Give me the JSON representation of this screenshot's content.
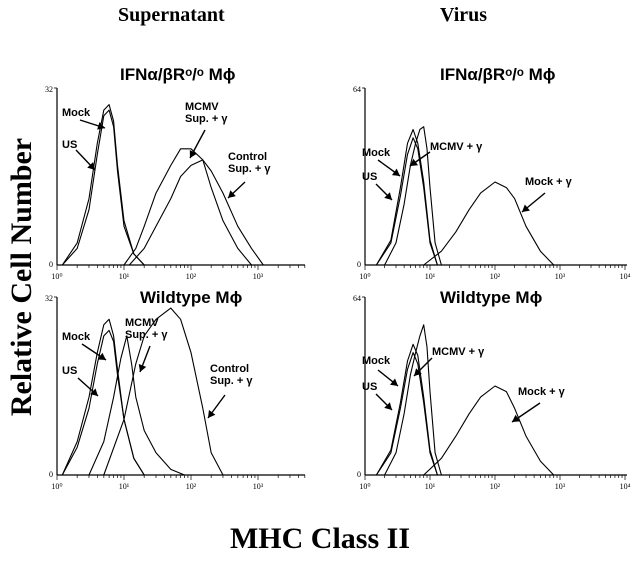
{
  "figure": {
    "col_left_title": "Supernatant",
    "col_right_title": "Virus",
    "ylabel": "Relative Cell Number",
    "xlabel": "MHC Class II"
  },
  "chart_data": [
    {
      "type": "line",
      "title": "IFNα/βRᵒ/ᵒ Mϕ",
      "x_scale": "log",
      "xlim": [
        1,
        10000
      ],
      "ylim": [
        0,
        32
      ],
      "x_ticks": [
        "10⁰",
        "10¹",
        "10²",
        "10³"
      ],
      "y_ticks": [
        "0",
        "32"
      ],
      "annotations": [
        "Mock",
        "US",
        "MCMV Sup. + γ",
        "Control Sup. + γ"
      ],
      "series": [
        {
          "name": "US",
          "x": [
            1.2,
            2,
            3,
            4,
            5,
            6,
            7,
            8,
            10,
            14,
            20
          ],
          "y": [
            0,
            3,
            10,
            20,
            27,
            28,
            25,
            17,
            7,
            2,
            0
          ]
        },
        {
          "name": "Mock",
          "x": [
            1.2,
            2,
            3,
            4,
            5,
            6,
            7,
            8,
            10,
            14,
            20
          ],
          "y": [
            0,
            4,
            12,
            22,
            28,
            29,
            26,
            18,
            8,
            2,
            0
          ]
        },
        {
          "name": "MCMV Sup. + γ",
          "x": [
            10,
            15,
            20,
            30,
            50,
            70,
            100,
            150,
            200,
            300,
            500,
            800
          ],
          "y": [
            0,
            3,
            7,
            13,
            18,
            21,
            21,
            19,
            14,
            8,
            3,
            0
          ]
        },
        {
          "name": "Control Sup. + γ",
          "x": [
            12,
            20,
            30,
            50,
            70,
            100,
            150,
            200,
            300,
            500,
            800,
            1200
          ],
          "y": [
            0,
            3,
            7,
            12,
            16,
            18,
            19,
            17,
            13,
            7,
            3,
            0
          ]
        }
      ]
    },
    {
      "type": "line",
      "title": "IFNα/βRᵒ/ᵒ Mϕ",
      "x_scale": "log",
      "xlim": [
        1,
        10000
      ],
      "ylim": [
        0,
        64
      ],
      "x_ticks": [
        "10⁰",
        "10¹",
        "10²",
        "10³",
        "10⁴"
      ],
      "y_ticks": [
        "0",
        "64"
      ],
      "annotations": [
        "Mock",
        "US",
        "MCMV + γ",
        "Mock + γ"
      ],
      "series": [
        {
          "name": "US",
          "x": [
            1.5,
            2.5,
            3.5,
            4.5,
            5.5,
            6.5,
            8,
            10,
            13
          ],
          "y": [
            0,
            8,
            25,
            40,
            46,
            42,
            28,
            8,
            0
          ]
        },
        {
          "name": "Mock",
          "x": [
            1.5,
            2.5,
            3.5,
            4.5,
            5.5,
            6.5,
            8,
            10,
            13
          ],
          "y": [
            0,
            9,
            28,
            44,
            49,
            44,
            30,
            9,
            0
          ]
        },
        {
          "name": "MCMV + γ",
          "x": [
            2,
            3,
            4,
            5,
            6,
            7,
            8,
            9,
            10,
            12,
            15
          ],
          "y": [
            0,
            8,
            22,
            36,
            44,
            49,
            50,
            42,
            28,
            8,
            0
          ]
        },
        {
          "name": "Mock + γ",
          "x": [
            8,
            15,
            25,
            40,
            60,
            100,
            150,
            200,
            300,
            500,
            800
          ],
          "y": [
            0,
            5,
            12,
            20,
            26,
            30,
            28,
            24,
            14,
            5,
            0
          ]
        }
      ]
    },
    {
      "type": "line",
      "title": "Wildtype Mϕ",
      "x_scale": "log",
      "xlim": [
        1,
        10000
      ],
      "ylim": [
        0,
        32
      ],
      "x_ticks": [
        "10⁰",
        "10¹",
        "10²",
        "10³"
      ],
      "y_ticks": [
        "0",
        "32"
      ],
      "annotations": [
        "Mock",
        "US",
        "MCMV Sup. + γ",
        "Control Sup. + γ"
      ],
      "series": [
        {
          "name": "US",
          "x": [
            1.2,
            2,
            3,
            4,
            5,
            6,
            7,
            8,
            10,
            14,
            20
          ],
          "y": [
            0,
            5,
            12,
            20,
            25,
            26,
            24,
            18,
            10,
            3,
            0
          ]
        },
        {
          "name": "Mock",
          "x": [
            1.2,
            2,
            3,
            4,
            5,
            6,
            7,
            8,
            10,
            14,
            20
          ],
          "y": [
            0,
            6,
            14,
            22,
            27,
            28,
            25,
            19,
            10,
            3,
            0
          ]
        },
        {
          "name": "MCMV Sup. + γ",
          "x": [
            3,
            5,
            7,
            9,
            11,
            13,
            15,
            20,
            30,
            50,
            80
          ],
          "y": [
            0,
            6,
            14,
            21,
            25,
            20,
            14,
            8,
            4,
            1,
            0
          ]
        },
        {
          "name": "Control Sup. + γ",
          "x": [
            5,
            10,
            15,
            20,
            30,
            50,
            70,
            100,
            150,
            200,
            300
          ],
          "y": [
            0,
            10,
            20,
            25,
            28,
            30,
            28,
            22,
            12,
            4,
            0
          ]
        }
      ]
    },
    {
      "type": "line",
      "title": "Wildtype Mϕ",
      "x_scale": "log",
      "xlim": [
        1,
        10000
      ],
      "ylim": [
        0,
        64
      ],
      "x_ticks": [
        "10⁰",
        "10¹",
        "10²",
        "10³",
        "10⁴"
      ],
      "y_ticks": [
        "0",
        "64"
      ],
      "annotations": [
        "Mock",
        "US",
        "MCMV + γ",
        "Mock + γ"
      ],
      "series": [
        {
          "name": "US",
          "x": [
            1.5,
            2.5,
            3.5,
            4.5,
            5.5,
            6.5,
            8,
            10,
            13
          ],
          "y": [
            0,
            8,
            24,
            38,
            44,
            40,
            26,
            8,
            0
          ]
        },
        {
          "name": "Mock",
          "x": [
            1.5,
            2.5,
            3.5,
            4.5,
            5.5,
            6.5,
            8,
            10,
            13
          ],
          "y": [
            0,
            9,
            26,
            41,
            47,
            43,
            28,
            9,
            0
          ]
        },
        {
          "name": "MCMV + γ",
          "x": [
            2,
            3,
            4,
            5,
            6,
            7,
            8,
            9,
            10,
            12,
            15
          ],
          "y": [
            0,
            8,
            22,
            36,
            44,
            50,
            54,
            46,
            30,
            8,
            0
          ]
        },
        {
          "name": "Mock + γ",
          "x": [
            8,
            15,
            25,
            40,
            60,
            100,
            150,
            200,
            300,
            500,
            800
          ],
          "y": [
            0,
            6,
            14,
            22,
            28,
            32,
            30,
            24,
            14,
            5,
            0
          ]
        }
      ]
    }
  ]
}
